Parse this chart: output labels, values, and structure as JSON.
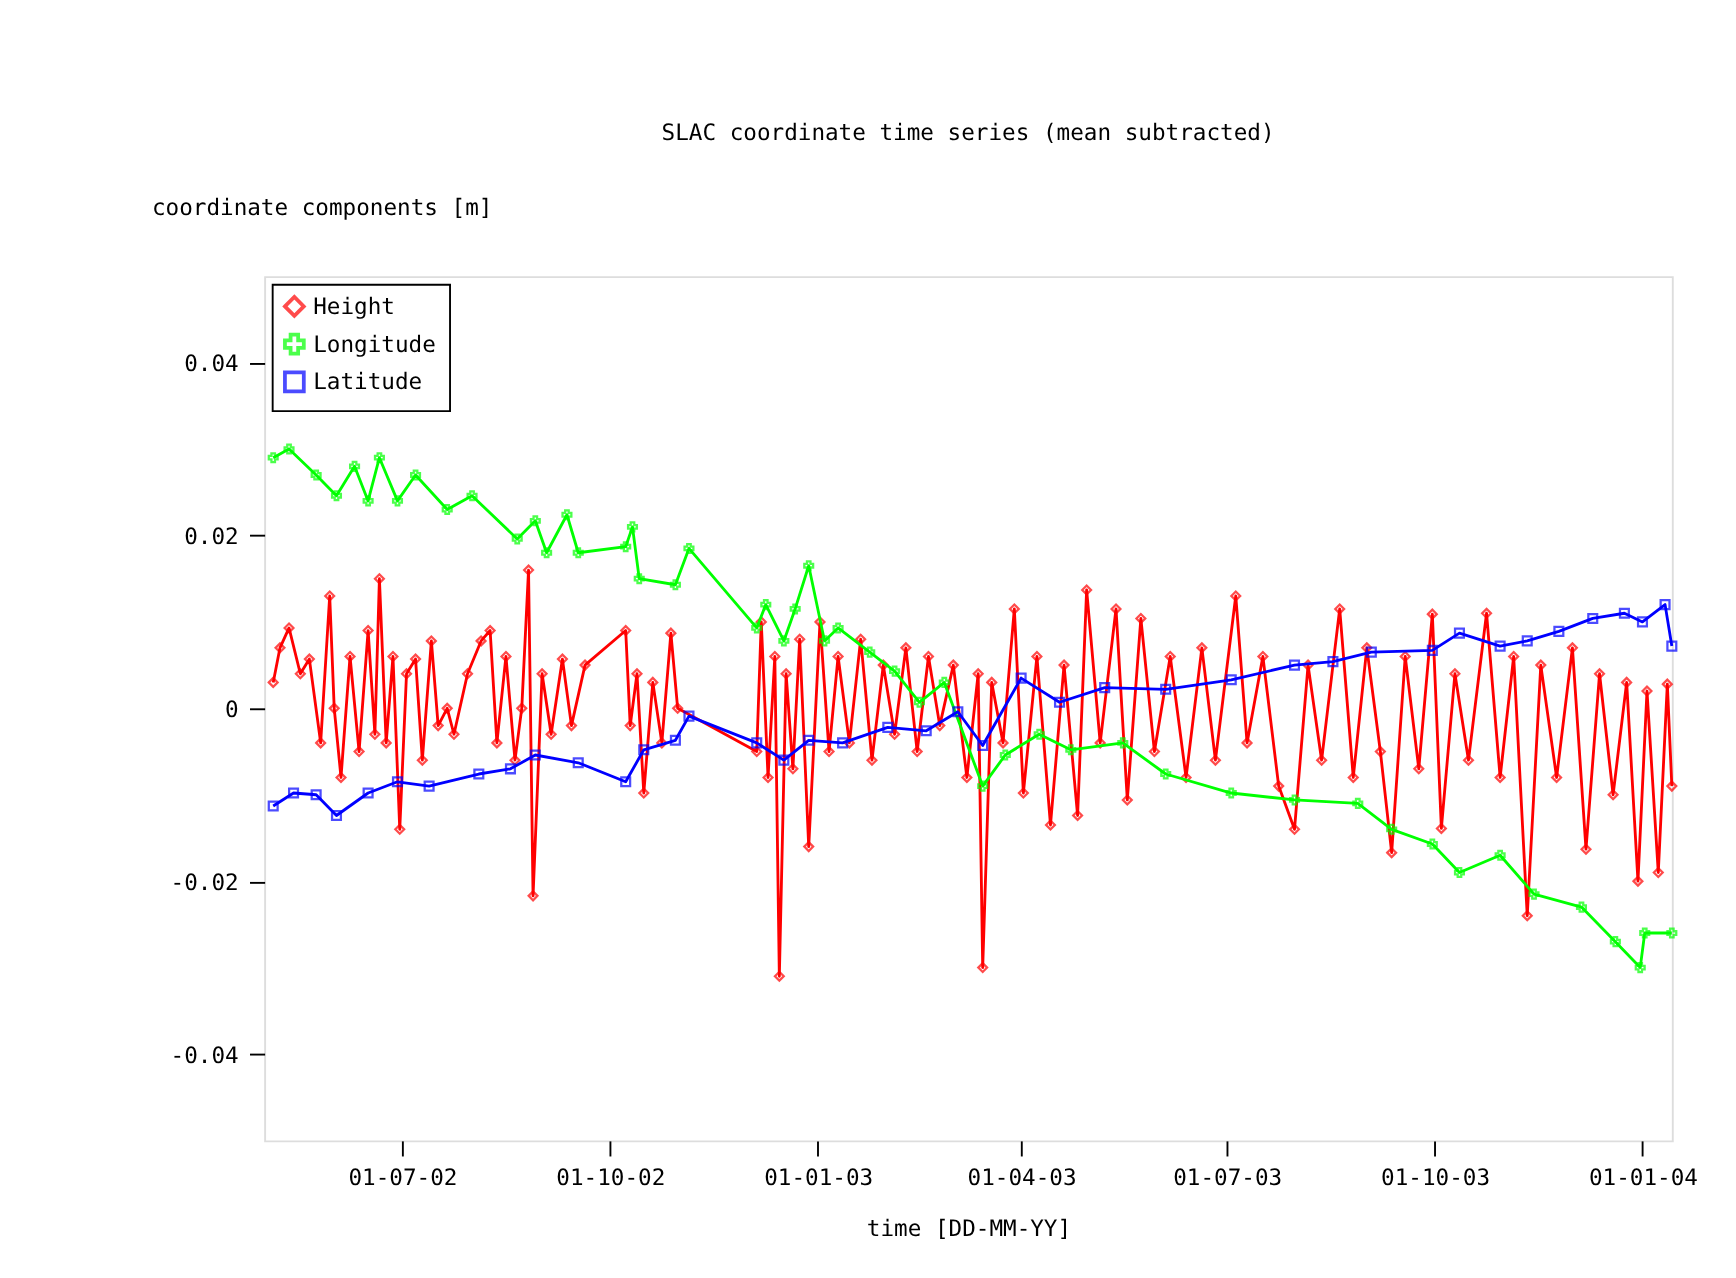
{
  "chart_data": {
    "type": "line",
    "title": "SLAC coordinate time series (mean subtracted)",
    "xlabel": "time  [DD-MM-YY]",
    "ylabel": "coordinate components  [m]",
    "xlim": [
      "2002-05-01",
      "2004-01-14"
    ],
    "xticks": [
      {
        "value": "2002-07-01",
        "label": "01-07-02"
      },
      {
        "value": "2002-10-01",
        "label": "01-10-02"
      },
      {
        "value": "2003-01-01",
        "label": "01-01-03"
      },
      {
        "value": "2003-04-01",
        "label": "01-04-03"
      },
      {
        "value": "2003-07-01",
        "label": "01-07-03"
      },
      {
        "value": "2003-10-01",
        "label": "01-10-03"
      },
      {
        "value": "2004-01-01",
        "label": "01-01-04"
      }
    ],
    "ylim": [
      -0.05,
      0.05
    ],
    "yticks": [
      -0.04,
      -0.02,
      0,
      0.02,
      0.04
    ],
    "grid": false,
    "legend": "top left",
    "line_style": "solid",
    "series": [
      {
        "name": "Height",
        "color": "#ff0000",
        "marker": "diamond",
        "x": [
          "2002-05-05",
          "2002-05-08",
          "2002-05-12",
          "2002-05-17",
          "2002-05-21",
          "2002-05-26",
          "2002-05-30",
          "2002-06-01",
          "2002-06-04",
          "2002-06-08",
          "2002-06-12",
          "2002-06-16",
          "2002-06-19",
          "2002-06-21",
          "2002-06-24",
          "2002-06-27",
          "2002-06-30",
          "2002-07-03",
          "2002-07-07",
          "2002-07-10",
          "2002-07-14",
          "2002-07-17",
          "2002-07-21",
          "2002-07-24",
          "2002-07-30",
          "2002-08-05",
          "2002-08-09",
          "2002-08-12",
          "2002-08-16",
          "2002-08-20",
          "2002-08-23",
          "2002-08-26",
          "2002-08-28",
          "2002-09-01",
          "2002-09-05",
          "2002-09-10",
          "2002-09-14",
          "2002-09-20",
          "2002-10-08",
          "2002-10-10",
          "2002-10-13",
          "2002-10-16",
          "2002-10-20",
          "2002-10-24",
          "2002-10-28",
          "2002-10-31",
          "2002-12-05",
          "2002-12-07",
          "2002-12-10",
          "2002-12-13",
          "2002-12-15",
          "2002-12-18",
          "2002-12-21",
          "2002-12-24",
          "2002-12-28",
          "2003-01-02",
          "2003-01-06",
          "2003-01-10",
          "2003-01-15",
          "2003-01-20",
          "2003-01-25",
          "2003-01-30",
          "2003-02-04",
          "2003-02-09",
          "2003-02-14",
          "2003-02-19",
          "2003-02-24",
          "2003-03-02",
          "2003-03-08",
          "2003-03-13",
          "2003-03-15",
          "2003-03-19",
          "2003-03-24",
          "2003-03-29",
          "2003-04-02",
          "2003-04-08",
          "2003-04-14",
          "2003-04-20",
          "2003-04-26",
          "2003-04-30",
          "2003-05-06",
          "2003-05-13",
          "2003-05-18",
          "2003-05-24",
          "2003-05-30",
          "2003-06-06",
          "2003-06-13",
          "2003-06-20",
          "2003-06-26",
          "2003-07-05",
          "2003-07-10",
          "2003-07-17",
          "2003-07-24",
          "2003-07-31",
          "2003-08-06",
          "2003-08-12",
          "2003-08-20",
          "2003-08-26",
          "2003-09-01",
          "2003-09-07",
          "2003-09-12",
          "2003-09-18",
          "2003-09-24",
          "2003-09-30",
          "2003-10-04",
          "2003-10-10",
          "2003-10-16",
          "2003-10-24",
          "2003-10-30",
          "2003-11-05",
          "2003-11-11",
          "2003-11-17",
          "2003-11-24",
          "2003-12-01",
          "2003-12-07",
          "2003-12-13",
          "2003-12-19",
          "2003-12-25",
          "2003-12-30",
          "2004-01-03",
          "2004-01-08",
          "2004-01-12",
          "2004-01-14"
        ],
        "values": [
          0.003,
          0.007,
          0.0093,
          0.004,
          0.0057,
          -0.004,
          0.013,
          0.0,
          -0.008,
          0.006,
          -0.005,
          0.009,
          -0.003,
          0.015,
          -0.004,
          0.006,
          -0.014,
          0.004,
          0.0057,
          -0.006,
          0.0078,
          -0.002,
          0.0,
          -0.003,
          0.004,
          0.0078,
          0.009,
          -0.004,
          0.006,
          -0.006,
          0.0,
          0.016,
          -0.0217,
          0.004,
          -0.003,
          0.0057,
          -0.002,
          0.005,
          0.009,
          -0.002,
          0.004,
          -0.0098,
          0.003,
          -0.004,
          0.0087,
          0.0,
          -0.005,
          0.01,
          -0.008,
          0.006,
          -0.031,
          0.004,
          -0.007,
          0.008,
          -0.016,
          0.01,
          -0.005,
          0.006,
          -0.004,
          0.008,
          -0.006,
          0.005,
          -0.003,
          0.007,
          -0.005,
          0.006,
          -0.002,
          0.005,
          -0.008,
          0.004,
          -0.03,
          0.003,
          -0.004,
          0.0115,
          -0.0098,
          0.006,
          -0.0135,
          0.005,
          -0.0124,
          0.0137,
          -0.004,
          0.0115,
          -0.0106,
          0.0104,
          -0.005,
          0.006,
          -0.008,
          0.007,
          -0.006,
          0.013,
          -0.004,
          0.006,
          -0.009,
          -0.014,
          0.005,
          -0.006,
          0.0115,
          -0.008,
          0.007,
          -0.005,
          -0.0167,
          0.006,
          -0.007,
          0.0109,
          -0.0139,
          0.004,
          -0.006,
          0.011,
          -0.008,
          0.006,
          -0.024,
          0.005,
          -0.008,
          0.007,
          -0.0163,
          0.004,
          -0.01,
          0.003,
          -0.02,
          0.002,
          -0.019,
          0.0028,
          -0.009
        ]
      },
      {
        "name": "Longitude",
        "color": "#00ff00",
        "marker": "cross",
        "x": [
          "2002-05-05",
          "2002-05-12",
          "2002-05-24",
          "2002-06-02",
          "2002-06-10",
          "2002-06-16",
          "2002-06-21",
          "2002-06-29",
          "2002-07-07",
          "2002-07-21",
          "2002-08-01",
          "2002-08-21",
          "2002-08-29",
          "2002-09-03",
          "2002-09-12",
          "2002-09-17",
          "2002-10-08",
          "2002-10-11",
          "2002-10-14",
          "2002-10-30",
          "2002-11-05",
          "2002-12-05",
          "2002-12-09",
          "2002-12-17",
          "2002-12-22",
          "2002-12-28",
          "2003-01-04",
          "2003-01-10",
          "2003-01-24",
          "2003-02-04",
          "2003-02-15",
          "2003-02-26",
          "2003-03-15",
          "2003-03-25",
          "2003-04-09",
          "2003-04-23",
          "2003-05-16",
          "2003-06-04",
          "2003-07-03",
          "2003-07-31",
          "2003-08-28",
          "2003-09-12",
          "2003-09-30",
          "2003-10-12",
          "2003-10-30",
          "2003-11-14",
          "2003-12-05",
          "2003-12-20",
          "2003-12-31",
          "2004-01-02",
          "2004-01-14"
        ],
        "values": [
          0.029,
          0.03,
          0.027,
          0.0246,
          0.028,
          0.024,
          0.029,
          0.024,
          0.027,
          0.023,
          0.0246,
          0.0196,
          0.0217,
          0.018,
          0.0224,
          0.018,
          0.0187,
          0.021,
          0.015,
          0.0143,
          0.0185,
          0.0093,
          0.012,
          0.0078,
          0.0115,
          0.0165,
          0.0078,
          0.0093,
          0.0065,
          0.0043,
          0.0007,
          0.003,
          -0.009,
          -0.0054,
          -0.003,
          -0.0048,
          -0.004,
          -0.0076,
          -0.0098,
          -0.0106,
          -0.011,
          -0.014,
          -0.0157,
          -0.019,
          -0.017,
          -0.0215,
          -0.023,
          -0.027,
          -0.03,
          -0.026,
          -0.026
        ]
      },
      {
        "name": "Latitude",
        "color": "#0000ff",
        "marker": "square",
        "x": [
          "2002-05-05",
          "2002-05-14",
          "2002-05-24",
          "2002-06-02",
          "2002-06-16",
          "2002-06-29",
          "2002-07-13",
          "2002-08-04",
          "2002-08-18",
          "2002-08-29",
          "2002-09-17",
          "2002-10-08",
          "2002-10-16",
          "2002-10-30",
          "2002-11-05",
          "2002-12-05",
          "2002-12-17",
          "2002-12-28",
          "2003-01-12",
          "2003-02-01",
          "2003-02-18",
          "2003-03-04",
          "2003-03-15",
          "2003-04-01",
          "2003-04-18",
          "2003-05-08",
          "2003-06-04",
          "2003-07-03",
          "2003-07-31",
          "2003-08-17",
          "2003-09-03",
          "2003-09-30",
          "2003-10-12",
          "2003-10-30",
          "2003-11-11",
          "2003-11-25",
          "2003-12-10",
          "2003-12-24",
          "2004-01-01",
          "2004-01-11",
          "2004-01-14"
        ],
        "values": [
          -0.0113,
          -0.0098,
          -0.01,
          -0.0124,
          -0.0098,
          -0.0085,
          -0.009,
          -0.0076,
          -0.007,
          -0.0054,
          -0.0063,
          -0.0085,
          -0.0048,
          -0.0037,
          -0.0009,
          -0.004,
          -0.006,
          -0.0037,
          -0.004,
          -0.0022,
          -0.0026,
          -0.0004,
          -0.0043,
          0.0035,
          0.0007,
          0.0024,
          0.0022,
          0.0033,
          0.005,
          0.0054,
          0.0065,
          0.0067,
          0.0087,
          0.0072,
          0.0078,
          0.0089,
          0.0104,
          0.011,
          0.01,
          0.012,
          0.0072
        ]
      }
    ]
  }
}
